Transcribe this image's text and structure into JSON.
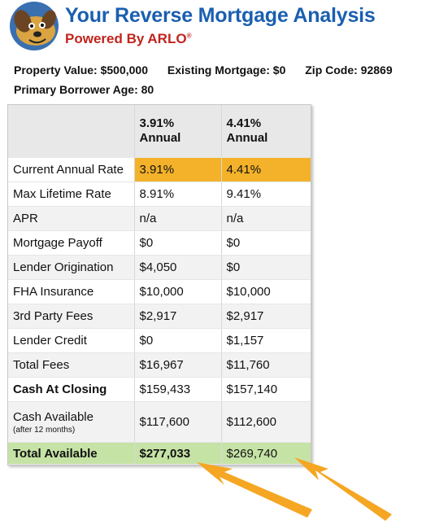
{
  "header": {
    "title": "Your Reverse Mortgage Analysis",
    "subtitle": "Powered By ARLO",
    "registered_mark": "®"
  },
  "property": {
    "value": "Property Value: $500,000",
    "mortgage": "Existing Mortgage: $0",
    "zip": "Zip Code: 92869",
    "age": "Primary Borrower Age: 80"
  },
  "table": {
    "columns": [
      {
        "rate": "3.91%",
        "label": "Annual"
      },
      {
        "rate": "4.41%",
        "label": "Annual"
      }
    ],
    "rows": [
      {
        "label": "Current Annual Rate",
        "values": [
          "3.91%",
          "4.41%"
        ]
      },
      {
        "label": "Max Lifetime Rate",
        "values": [
          "8.91%",
          "9.41%"
        ]
      },
      {
        "label": "APR",
        "values": [
          "n/a",
          "n/a"
        ]
      },
      {
        "label": "Mortgage Payoff",
        "values": [
          "$0",
          "$0"
        ]
      },
      {
        "label": "Lender Origination",
        "values": [
          "$4,050",
          "$0"
        ]
      },
      {
        "label": "FHA Insurance",
        "values": [
          "$10,000",
          "$10,000"
        ]
      },
      {
        "label": "3rd Party Fees",
        "values": [
          "$2,917",
          "$2,917"
        ]
      },
      {
        "label": "Lender Credit",
        "values": [
          "$0",
          "$1,157"
        ]
      },
      {
        "label": "Total Fees",
        "values": [
          "$16,967",
          "$11,760"
        ]
      },
      {
        "label": "Cash At Closing",
        "values": [
          "$159,433",
          "$157,140"
        ]
      },
      {
        "label": "Cash Available",
        "note": "(after 12 months)",
        "values": [
          "$117,600",
          "$112,600"
        ]
      },
      {
        "label": "Total Available",
        "values": [
          "$277,033",
          "$269,740"
        ]
      }
    ]
  },
  "colors": {
    "title": "#1a5fb0",
    "subtitle": "#c0241c",
    "rate_highlight": "#f3b22a",
    "total_highlight": "#c6e3a6",
    "arrow": "#f5a623"
  },
  "icons": {
    "logo": "dog-mascot-logo",
    "arrows": "pointing-arrow-icon"
  }
}
